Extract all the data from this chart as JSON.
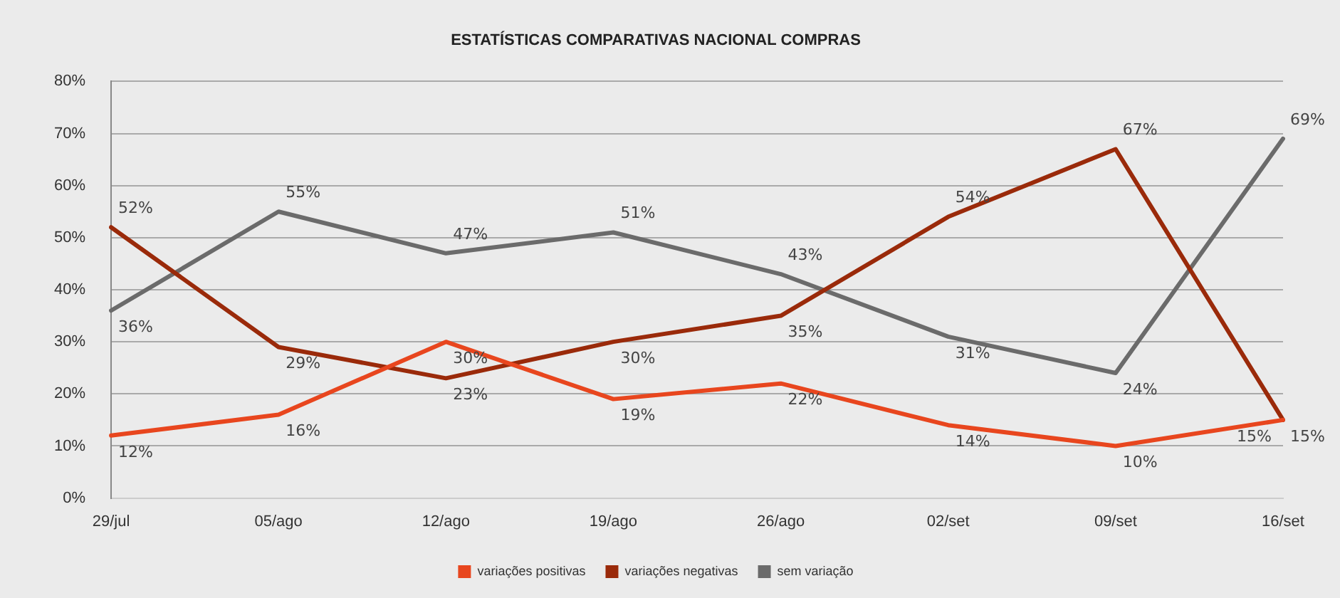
{
  "chart_data": {
    "type": "line",
    "title": "ESTATÍSTICAS COMPARATIVAS NACIONAL COMPRAS",
    "categories": [
      "29/jul",
      "05/ago",
      "12/ago",
      "19/ago",
      "26/ago",
      "02/set",
      "09/set",
      "16/set"
    ],
    "series": [
      {
        "name": "variações positivas",
        "color": "#e8461e",
        "values": [
          12,
          16,
          30,
          19,
          22,
          14,
          10,
          15
        ],
        "value_labels": [
          "12%",
          "16%",
          "30%",
          "19%",
          "22%",
          "14%",
          "10%",
          "15%"
        ]
      },
      {
        "name": "variações negativas",
        "color": "#9a2a0a",
        "values": [
          52,
          29,
          23,
          30,
          35,
          54,
          67,
          15
        ],
        "value_labels": [
          "52%",
          "29%",
          "23%",
          "30%",
          "35%",
          "54%",
          "67%",
          "15%"
        ]
      },
      {
        "name": "sem variação",
        "color": "#6b6b6b",
        "values": [
          36,
          55,
          47,
          51,
          43,
          31,
          24,
          69
        ],
        "value_labels": [
          "36%",
          "55%",
          "47%",
          "51%",
          "43%",
          "31%",
          "24%",
          "69%"
        ]
      }
    ],
    "ylim": [
      0,
      80
    ],
    "yticks": [
      {
        "value": 0,
        "label": "0%"
      },
      {
        "value": 10,
        "label": "10%"
      },
      {
        "value": 20,
        "label": "20%"
      },
      {
        "value": 30,
        "label": "30%"
      },
      {
        "value": 40,
        "label": "40%"
      },
      {
        "value": 50,
        "label": "50%"
      },
      {
        "value": 60,
        "label": "60%"
      },
      {
        "value": 70,
        "label": "70%"
      },
      {
        "value": 80,
        "label": "80%"
      }
    ],
    "grid": "y",
    "legend": "bottom",
    "marker": "none",
    "line_style": "solid"
  }
}
